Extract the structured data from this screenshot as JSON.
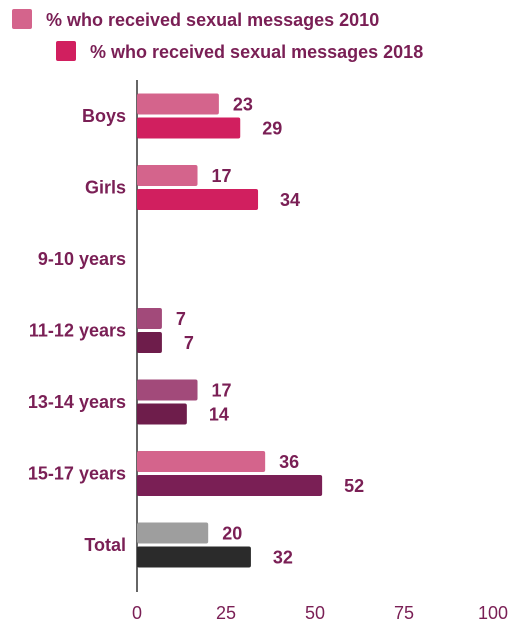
{
  "chart_data": {
    "type": "bar",
    "orientation": "horizontal",
    "categories": [
      "Boys",
      "Girls",
      "9-10 years",
      "11-12 years",
      "13-14 years",
      "15-17 years",
      "Total"
    ],
    "series": [
      {
        "name": "% who received sexual messages 2010",
        "values": [
          23,
          17,
          null,
          7,
          17,
          36,
          20
        ]
      },
      {
        "name": "% who received sexual messages 2018",
        "values": [
          29,
          34,
          null,
          7,
          14,
          52,
          32
        ]
      }
    ],
    "bar_colors": [
      [
        "#d4648c",
        "#d11f5f"
      ],
      [
        "#d4648c",
        "#d11f5f"
      ],
      [
        "#a24a7a",
        "#6e1d4b"
      ],
      [
        "#a24a7a",
        "#6e1d4b"
      ],
      [
        "#a24a7a",
        "#6e1d4b"
      ],
      [
        "#d4648c",
        "#7a1f55"
      ],
      [
        "#9e9e9e",
        "#2b2b2b"
      ]
    ],
    "legend_colors": [
      "#d4648c",
      "#d11f5f"
    ],
    "xlim": [
      0,
      100
    ],
    "x_ticks": [
      0,
      25,
      50,
      75,
      100
    ],
    "legend_position": "top-left",
    "grid": false,
    "title": "",
    "xlabel": "",
    "ylabel": ""
  }
}
